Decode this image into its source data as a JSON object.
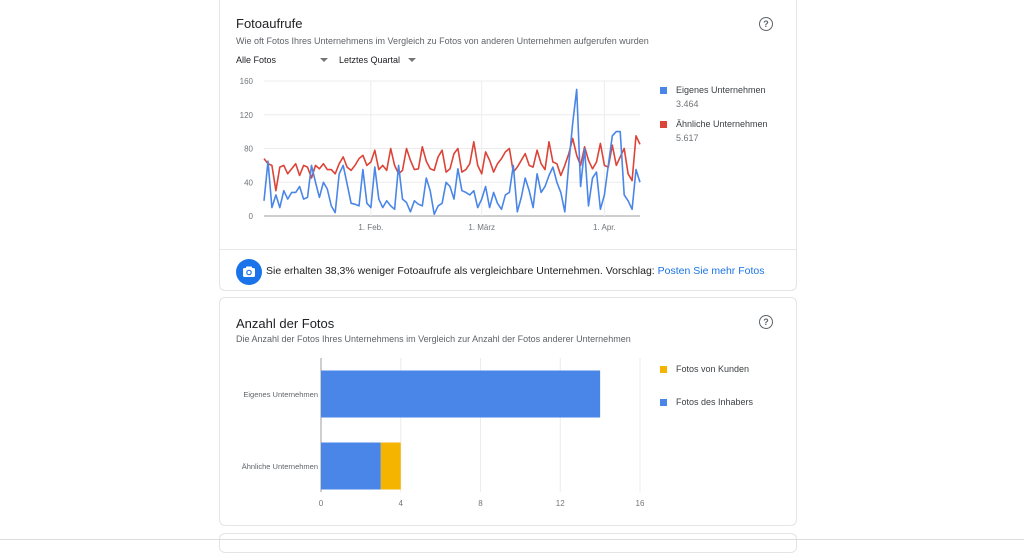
{
  "photo_views": {
    "title": "Fotoaufrufe",
    "subtitle": "Wie oft Fotos Ihres Unternehmens im Vergleich zu Fotos von anderen Unternehmen aufgerufen wurden",
    "help_icon": "help-circle-icon",
    "filter_photos": "Alle Fotos",
    "filter_period": "Letztes Quartal",
    "legend": [
      {
        "label": "Eigenes Unternehmen",
        "value": "3.464",
        "color": "#4a86e8"
      },
      {
        "label": "Ähnliche Unternehmen",
        "value": "5.617",
        "color": "#db4437"
      }
    ],
    "insight_text": "Sie erhalten 38,3% weniger Fotoaufrufe als vergleichbare Unternehmen. Vorschlag:",
    "insight_link": "Posten Sie mehr Fotos",
    "insight_icon": "camera-icon"
  },
  "photo_count": {
    "title": "Anzahl der Fotos",
    "subtitle": "Die Anzahl der Fotos Ihres Unternehmens im Vergleich zur Anzahl der Fotos anderer Unternehmen",
    "help_icon": "help-circle-icon",
    "legend": [
      {
        "label": "Fotos von Kunden",
        "color": "#f4b400"
      },
      {
        "label": "Fotos des Inhabers",
        "color": "#4a86e8"
      }
    ]
  },
  "chart_data": [
    {
      "type": "line",
      "title": "Fotoaufrufe",
      "ylim": [
        0,
        160
      ],
      "yticks": [
        0,
        40,
        80,
        120,
        160
      ],
      "xticks": [
        {
          "label": "1. Feb.",
          "index": 27
        },
        {
          "label": "1. März",
          "index": 55
        },
        {
          "label": "1. Apr.",
          "index": 86
        }
      ],
      "series": [
        {
          "name": "Eigenes Unternehmen",
          "color": "#4a86e8",
          "values": [
            18,
            65,
            10,
            25,
            10,
            30,
            20,
            28,
            28,
            35,
            20,
            22,
            60,
            40,
            22,
            40,
            32,
            12,
            4,
            50,
            60,
            38,
            15,
            14,
            12,
            55,
            15,
            10,
            58,
            20,
            10,
            18,
            12,
            8,
            60,
            20,
            16,
            5,
            18,
            14,
            12,
            45,
            30,
            2,
            12,
            15,
            40,
            35,
            20,
            56,
            30,
            28,
            25,
            30,
            10,
            20,
            35,
            10,
            28,
            15,
            8,
            25,
            28,
            60,
            5,
            22,
            45,
            30,
            10,
            50,
            28,
            35,
            48,
            58,
            40,
            28,
            5,
            62,
            110,
            150,
            35,
            80,
            12,
            45,
            52,
            8,
            25,
            60,
            95,
            100,
            100,
            25,
            18,
            8,
            55,
            40
          ]
        },
        {
          "name": "Ähnliche Unternehmen",
          "color": "#db4437",
          "values": [
            68,
            62,
            60,
            30,
            58,
            60,
            50,
            56,
            62,
            48,
            60,
            58,
            45,
            60,
            56,
            62,
            55,
            55,
            50,
            62,
            70,
            58,
            54,
            60,
            68,
            72,
            60,
            64,
            78,
            55,
            60,
            54,
            80,
            60,
            50,
            54,
            80,
            66,
            55,
            56,
            82,
            65,
            56,
            54,
            70,
            78,
            52,
            56,
            74,
            80,
            52,
            55,
            62,
            88,
            60,
            50,
            76,
            66,
            52,
            62,
            68,
            76,
            80,
            52,
            58,
            66,
            74,
            60,
            58,
            78,
            62,
            55,
            88,
            64,
            62,
            48,
            60,
            74,
            92,
            72,
            60,
            82,
            66,
            56,
            64,
            86,
            60,
            58,
            84,
            60,
            70,
            80,
            50,
            42,
            95,
            85
          ]
        }
      ]
    },
    {
      "type": "bar",
      "orientation": "horizontal",
      "stacked": true,
      "title": "Anzahl der Fotos",
      "categories": [
        "Eigenes Unternehmen",
        "Ähnliche Unternehmen"
      ],
      "series": [
        {
          "name": "Fotos des Inhabers",
          "color": "#4a86e8",
          "values": [
            14,
            3
          ]
        },
        {
          "name": "Fotos von Kunden",
          "color": "#f4b400",
          "values": [
            0,
            1
          ]
        }
      ],
      "xlim": [
        0,
        16
      ],
      "xticks": [
        0,
        4,
        8,
        12,
        16
      ]
    }
  ]
}
